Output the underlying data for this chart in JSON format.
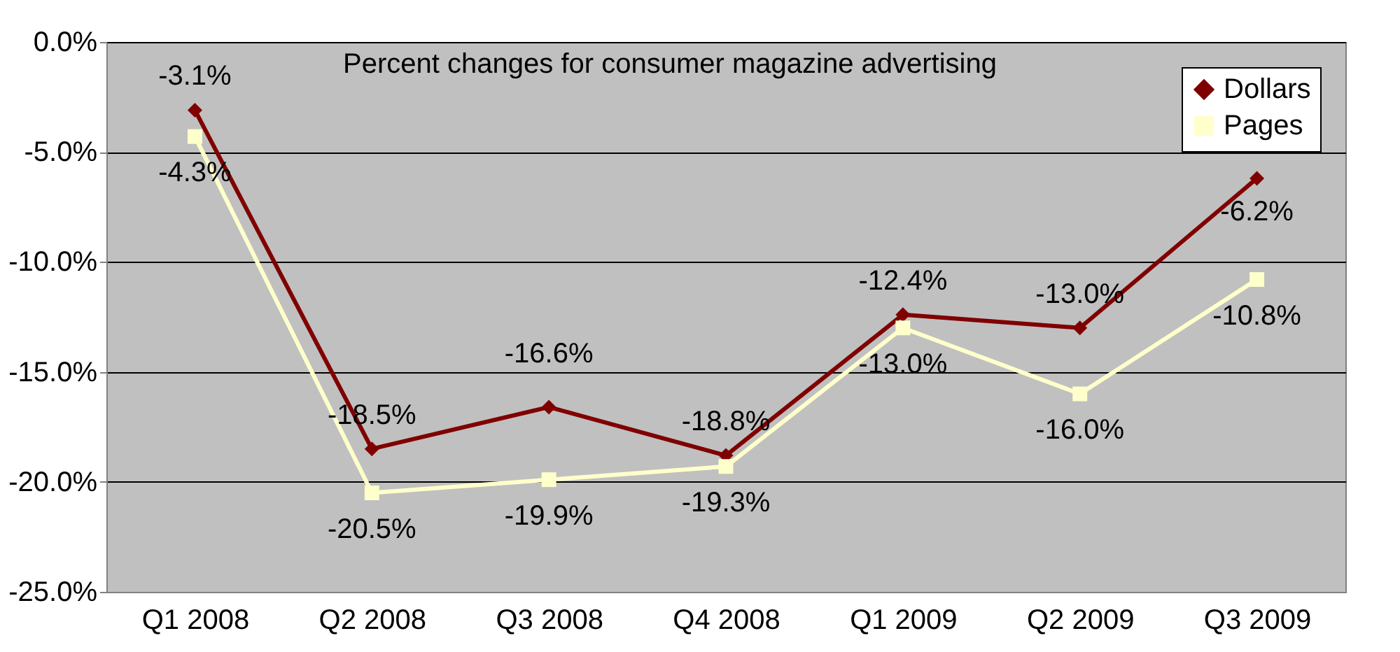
{
  "chart_data": {
    "type": "line",
    "title": "Percent changes for consumer magazine advertising",
    "categories": [
      "Q1 2008",
      "Q2 2008",
      "Q3 2008",
      "Q4 2008",
      "Q1 2009",
      "Q2 2009",
      "Q3 2009"
    ],
    "series": [
      {
        "name": "Dollars",
        "color": "#800000",
        "marker": "diamond",
        "values": [
          -3.1,
          -18.5,
          -16.6,
          -18.8,
          -12.4,
          -13.0,
          -6.2
        ],
        "value_labels": [
          "-3.1%",
          "-18.5%",
          "-16.6%",
          "-18.8%",
          "-12.4%",
          "-13.0%",
          "-6.2%"
        ]
      },
      {
        "name": "Pages",
        "color": "#ffffcc",
        "marker": "square",
        "values": [
          -4.3,
          -20.5,
          -19.9,
          -19.3,
          -13.0,
          -16.0,
          -10.8
        ],
        "value_labels": [
          "-4.3%",
          "-20.5%",
          "-19.9%",
          "-19.3%",
          "-13.0%",
          "-16.0%",
          "-10.8%"
        ]
      }
    ],
    "ylim": [
      -25,
      0
    ],
    "yticks": [
      {
        "value": -25,
        "label": "-25.0%"
      },
      {
        "value": -20,
        "label": "-20.0%"
      },
      {
        "value": -15,
        "label": "-15.0%"
      },
      {
        "value": -10,
        "label": "-10.0%"
      },
      {
        "value": -5,
        "label": "-5.0%"
      },
      {
        "value": 0,
        "label": "0.0%"
      }
    ],
    "grid": "y",
    "legend": "top right"
  }
}
